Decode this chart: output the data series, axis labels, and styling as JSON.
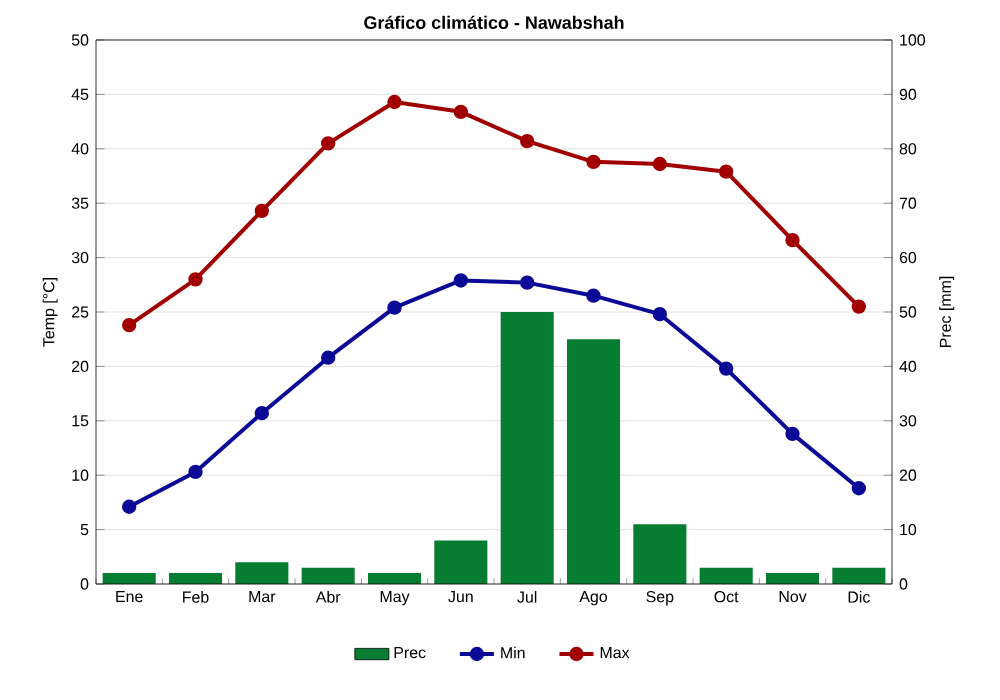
{
  "chart_data": {
    "type": "line",
    "title": "Gráfico climático - Nawabshah",
    "categories": [
      "Ene",
      "Feb",
      "Mar",
      "Abr",
      "May",
      "Jun",
      "Jul",
      "Ago",
      "Sep",
      "Oct",
      "Nov",
      "Dic"
    ],
    "series": [
      {
        "name": "Prec",
        "type": "bar",
        "axis": "y2",
        "color": "#067d31",
        "values": [
          2,
          2,
          4,
          3,
          2,
          8,
          50,
          45,
          11,
          3,
          2,
          3
        ]
      },
      {
        "name": "Min",
        "color": "#0a0a96",
        "values": [
          7.1,
          10.3,
          15.7,
          20.8,
          25.4,
          27.9,
          27.7,
          26.5,
          24.8,
          19.8,
          13.8,
          8.8
        ]
      },
      {
        "name": "Max",
        "color": "#a00000",
        "values": [
          23.8,
          28.0,
          34.3,
          40.5,
          44.3,
          43.4,
          40.7,
          38.8,
          38.6,
          37.9,
          31.6,
          25.5
        ]
      }
    ],
    "ylabel": "Temp [°C]",
    "y2label": "Prec [mm]",
    "ylim": [
      0,
      50
    ],
    "yticks": [
      0,
      5,
      10,
      15,
      20,
      25,
      30,
      35,
      40,
      45,
      50
    ],
    "y2lim": [
      0,
      100
    ],
    "y2ticks": [
      0,
      10,
      20,
      30,
      40,
      50,
      60,
      70,
      80,
      90,
      100
    ],
    "grid": true,
    "legend": "bottom",
    "marker": "circle",
    "line_style": "solid"
  }
}
